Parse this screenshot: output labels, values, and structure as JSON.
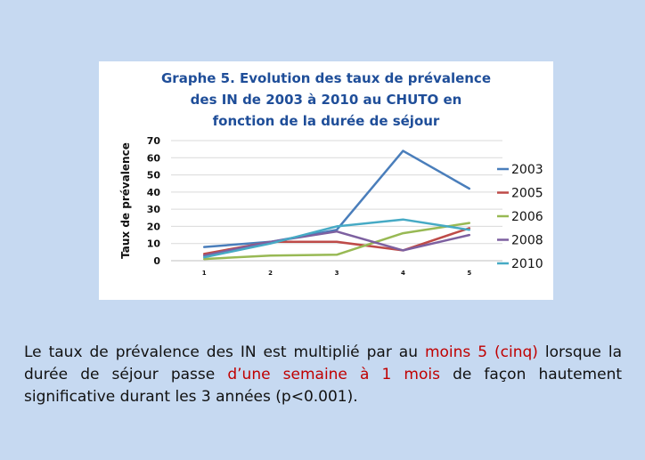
{
  "chart_data": {
    "type": "line",
    "title_lines": [
      "Graphe 5. Evolution des taux de prévalence",
      "des IN de  2003 à 2010 au CHUTO en",
      "fonction de la durée de séjour"
    ],
    "xlabel": "",
    "ylabel": "Taux de prévalence",
    "categories": [
      "1",
      "2",
      "3",
      "4",
      "5"
    ],
    "yticks": [
      "0",
      "10",
      "20",
      "30",
      "40",
      "50",
      "60",
      "70"
    ],
    "ylim": [
      0,
      70
    ],
    "grid": true,
    "legend_position": "right",
    "series": [
      {
        "name": "2003",
        "color": "#4a7ebb",
        "values": [
          8,
          11,
          18,
          64,
          42
        ]
      },
      {
        "name": "2005",
        "color": "#be4b48",
        "values": [
          4,
          11,
          11,
          6,
          19
        ]
      },
      {
        "name": "2006",
        "color": "#98b954",
        "values": [
          1,
          3,
          3.5,
          16,
          22
        ]
      },
      {
        "name": "2008",
        "color": "#7d60a0",
        "values": [
          3,
          11,
          17,
          6,
          15
        ]
      },
      {
        "name": "2010",
        "color": "#46aac5",
        "values": [
          2,
          10,
          20,
          24,
          18
        ]
      }
    ]
  },
  "caption": {
    "part1": "Le taux de prévalence des IN est multiplié par au ",
    "hl1": "moins 5 (cinq)",
    "part2": " lorsque la durée de séjour passe ",
    "hl2": "d’une semaine à 1 mois",
    "part3": " de façon hautement significative durant les 3 années (p<0.001).",
    "highlight_color": "#c00000"
  }
}
